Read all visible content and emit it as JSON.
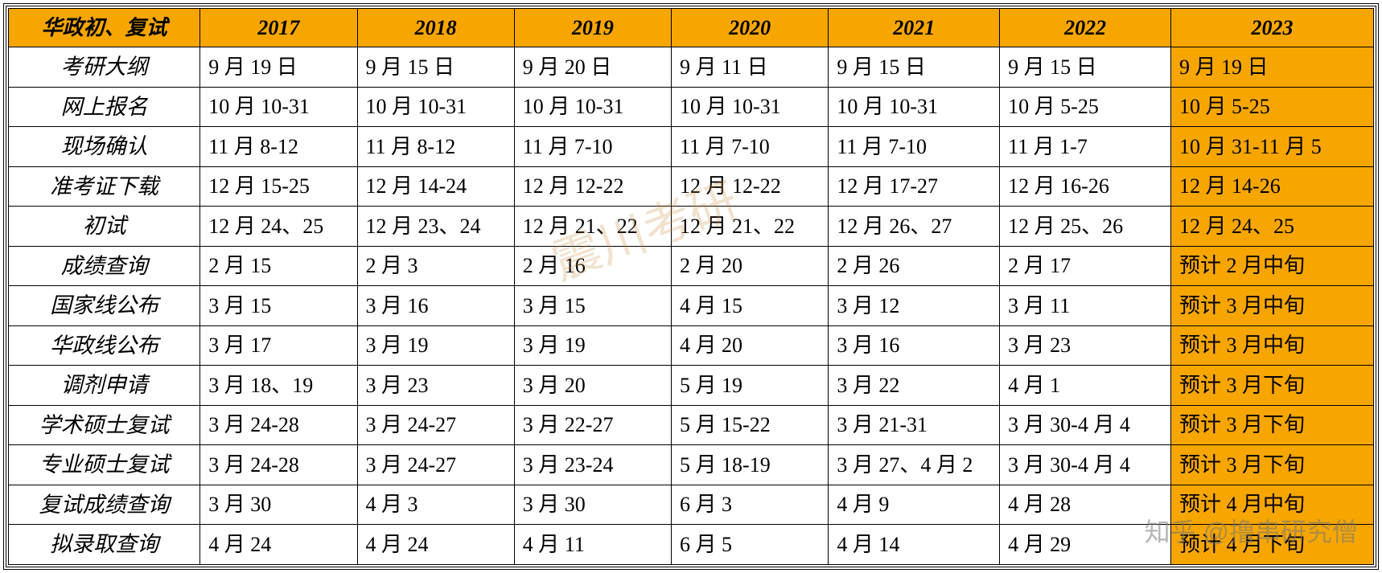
{
  "table": {
    "header_bg": "#f7a600",
    "highlight_bg": "#f7a600",
    "border_color": "#000000",
    "columns": [
      "华政初、复试",
      "2017",
      "2018",
      "2019",
      "2020",
      "2021",
      "2022",
      "2023"
    ],
    "rows": [
      {
        "label": "考研大纲",
        "cells": [
          "9 月 19 日",
          "9 月 15 日",
          "9 月 20 日",
          "9 月 11 日",
          "9 月 15 日",
          "9 月 15 日",
          "9 月 19 日"
        ]
      },
      {
        "label": "网上报名",
        "cells": [
          "10 月 10-31",
          "10 月 10-31",
          "10 月 10-31",
          "10 月 10-31",
          "10 月 10-31",
          "10 月 5-25",
          "10 月 5-25"
        ]
      },
      {
        "label": "现场确认",
        "cells": [
          "11 月 8-12",
          "11 月 8-12",
          "11 月 7-10",
          "11 月 7-10",
          "11 月 7-10",
          "11 月 1-7",
          "10 月 31-11 月 5"
        ]
      },
      {
        "label": "准考证下载",
        "cells": [
          "12 月 15-25",
          "12 月 14-24",
          "12 月 12-22",
          "12 月 12-22",
          "12 月 17-27",
          "12 月 16-26",
          "12 月 14-26"
        ]
      },
      {
        "label": "初试",
        "cells": [
          "12 月 24、25",
          "12 月 23、24",
          "12 月 21、22",
          "12 月 21、22",
          "12 月 26、27",
          "12 月 25、26",
          "12 月 24、25"
        ]
      },
      {
        "label": "成绩查询",
        "cells": [
          "2 月 15",
          "2 月 3",
          "2 月 16",
          "2 月 20",
          "2 月 26",
          "2 月 17",
          "预计 2 月中旬"
        ]
      },
      {
        "label": "国家线公布",
        "cells": [
          "3 月 15",
          "3 月 16",
          "3 月 15",
          "4 月 15",
          "3 月 12",
          "3 月 11",
          "预计 3 月中旬"
        ]
      },
      {
        "label": "华政线公布",
        "cells": [
          "3 月 17",
          "3 月 19",
          "3 月 19",
          "4 月 20",
          "3 月 16",
          "3 月 23",
          "预计 3 月中旬"
        ]
      },
      {
        "label": "调剂申请",
        "cells": [
          "3 月 18、19",
          "3 月 23",
          "3 月 20",
          "5 月 19",
          "3 月 22",
          "4 月 1",
          "预计 3 月下旬"
        ]
      },
      {
        "label": "学术硕士复试",
        "cells": [
          "3 月 24-28",
          "3 月 24-27",
          "3 月 22-27",
          "5 月 15-22",
          "3 月 21-31",
          "3 月 30-4 月 4",
          "预计 3 月下旬"
        ]
      },
      {
        "label": "专业硕士复试",
        "cells": [
          "3 月 24-28",
          "3 月 24-27",
          "3 月 23-24",
          "5 月 18-19",
          "3 月 27、4 月 2",
          "3 月 30-4 月 4",
          "预计 3 月下旬"
        ]
      },
      {
        "label": "复试成绩查询",
        "cells": [
          "3 月 30",
          "4 月 3",
          "3 月 30",
          "6 月 3",
          "4 月 9",
          "4 月 28",
          "预计 4 月中旬"
        ]
      },
      {
        "label": "拟录取查询",
        "cells": [
          "4 月 24",
          "4 月 24",
          "4 月 11",
          "6 月 5",
          "4 月 14",
          "4 月 29",
          "预计 4 月下旬"
        ]
      }
    ],
    "highlight_col_index": 7
  },
  "watermark_center": "震川考研",
  "watermark_corner": "知乎 @撸串研究僧"
}
